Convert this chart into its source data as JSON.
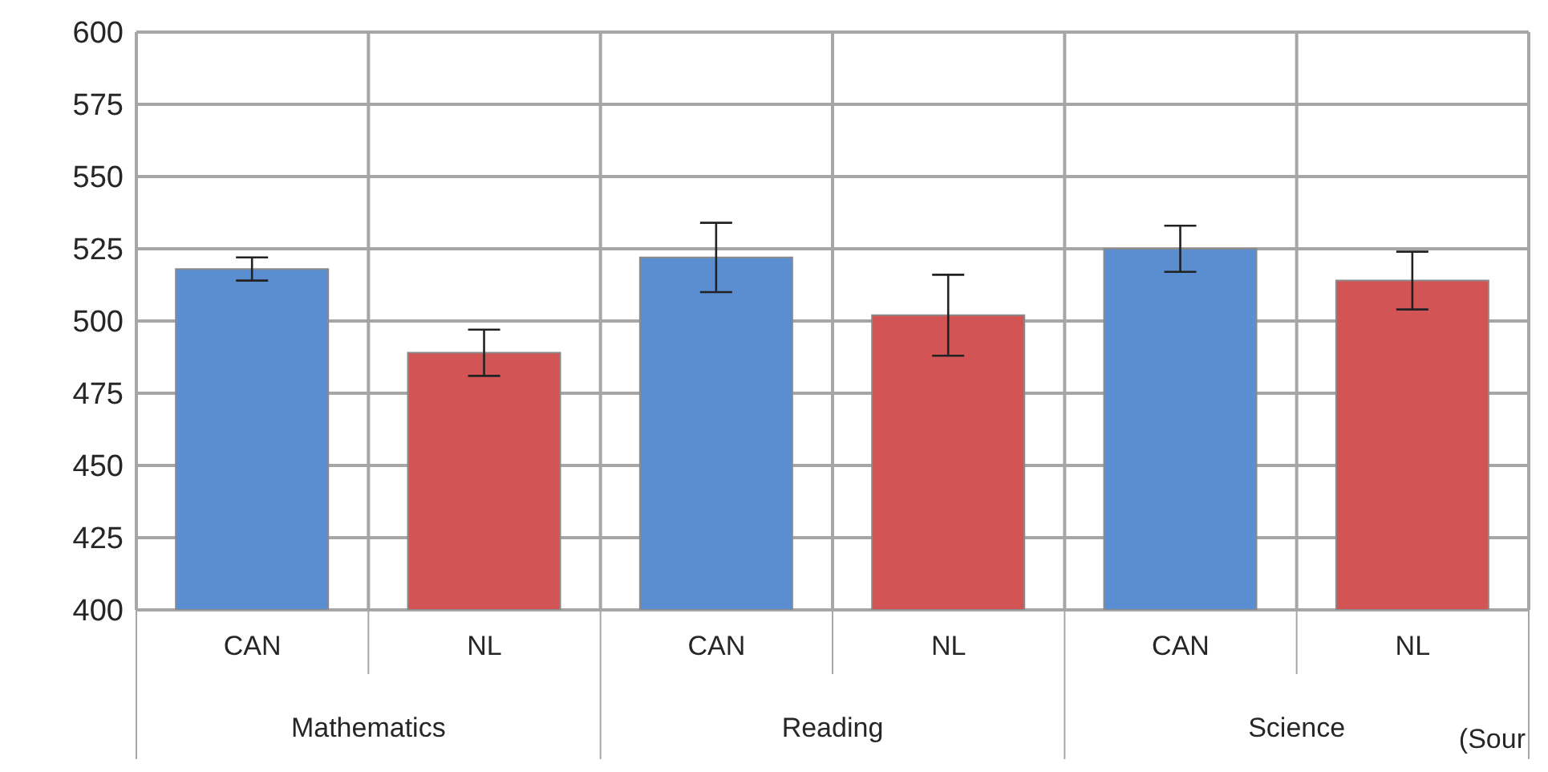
{
  "chart_data": {
    "type": "bar",
    "categories": [
      "CAN",
      "NL",
      "CAN",
      "NL",
      "CAN",
      "NL"
    ],
    "values": [
      518,
      489,
      522,
      502,
      525,
      514
    ],
    "errors": [
      4,
      8,
      12,
      14,
      8,
      10
    ],
    "colors": [
      "#5a8ed0",
      "#d25454",
      "#5a8ed0",
      "#d25454",
      "#5a8ed0",
      "#d25454"
    ],
    "ylim": [
      400,
      600
    ],
    "yticks": [
      400,
      425,
      450,
      475,
      500,
      525,
      550,
      575,
      600
    ],
    "grid": true,
    "annotations": [
      "Mathematics",
      "Reading",
      "Science",
      "(Sour"
    ]
  }
}
